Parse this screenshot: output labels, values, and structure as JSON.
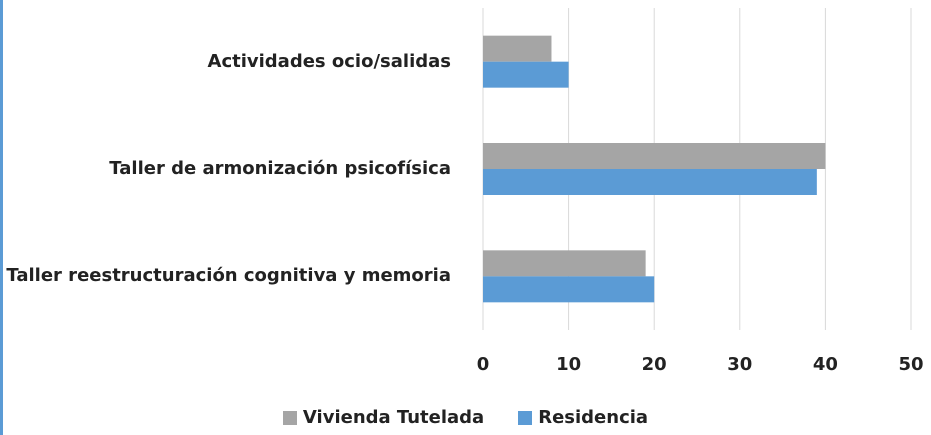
{
  "chart_data": {
    "type": "bar",
    "orientation": "horizontal",
    "categories": [
      "Actividades ocio/salidas",
      "Taller de armonización psicofísica",
      "Taller reestructuración cognitiva y memoria"
    ],
    "series": [
      {
        "name": "Vivienda Tutelada",
        "color": "#a5a5a5",
        "values": [
          8,
          40,
          19
        ]
      },
      {
        "name": "Residencia",
        "color": "#5b9bd5",
        "values": [
          10,
          39,
          20
        ]
      }
    ],
    "xlim": [
      0,
      50
    ],
    "xticks": [
      0,
      10,
      20,
      30,
      40,
      50
    ],
    "grid": true,
    "legend": "bottom"
  }
}
